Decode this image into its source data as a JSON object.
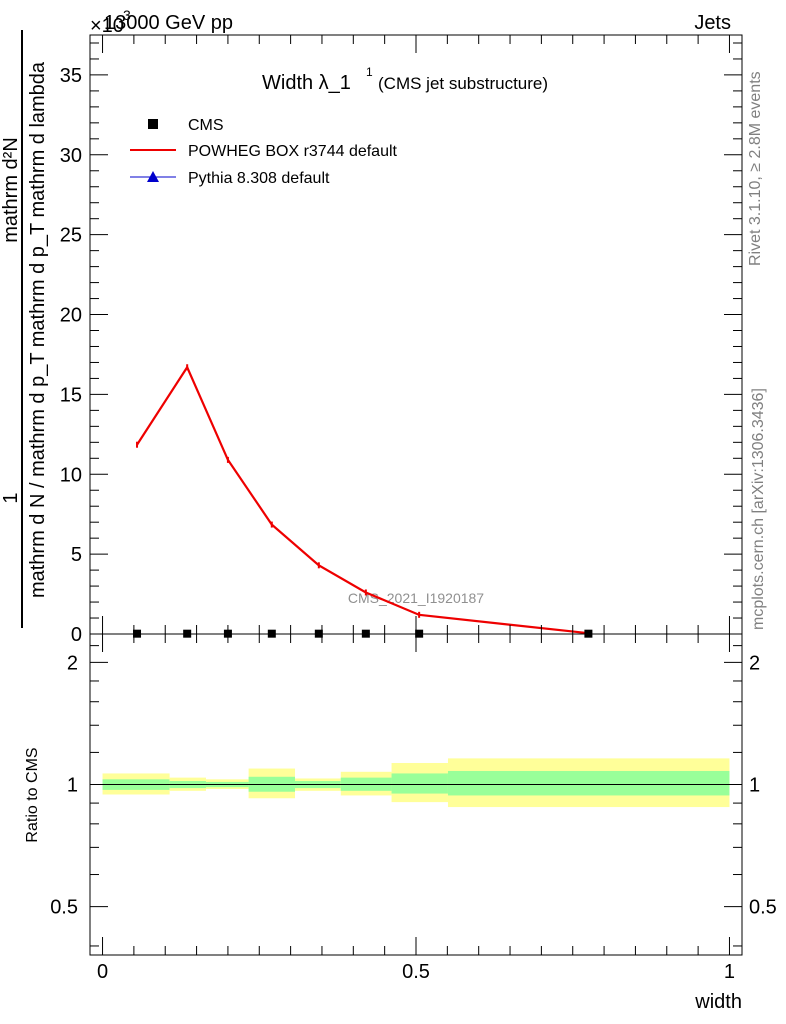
{
  "header": {
    "left": "13000 GeV pp",
    "right": "Jets",
    "multiplier": "×10",
    "exponent": "3"
  },
  "side_labels": {
    "rivet": "Rivet 3.1.10, ≥ 2.8M events",
    "mcplots": "mcplots.cern.ch [arXiv:1306.3436]"
  },
  "watermark": "CMS_2021_I1920187",
  "title": {
    "main": "Width λ_1",
    "sup": "1",
    "sub": "(CMS jet substructure)"
  },
  "legend": [
    {
      "name": "CMS",
      "marker": "square",
      "color": "#000000"
    },
    {
      "name": "POWHEG BOX r3744 default",
      "marker": "line",
      "color": "#ee0000"
    },
    {
      "name": "Pythia 8.308 default",
      "marker": "triangle",
      "color": "#0000cc"
    }
  ],
  "axis_labels": {
    "y_top_numerator": "1",
    "y_top_denominator": "mathrm d N / mathrm d p_T mathrm d p_T mathrm d lambda",
    "y_top_sub_numerator": "mathrm d²N",
    "y_bottom": "Ratio to CMS",
    "x": "width"
  },
  "chart_data": [
    {
      "type": "line",
      "panel": "main",
      "xlim": [
        -0.02,
        1.02
      ],
      "ylim": [
        0,
        37.5
      ],
      "y_multiplier": 1000,
      "x_ticks": [
        0,
        0.5,
        1
      ],
      "y_ticks": [
        0,
        5,
        10,
        15,
        20,
        25,
        30,
        35
      ],
      "series": [
        {
          "name": "CMS",
          "x": [
            0.055,
            0.135,
            0.2,
            0.27,
            0.345,
            0.42,
            0.505,
            0.775
          ],
          "values": [
            0.02,
            0.02,
            0.02,
            0.02,
            0.02,
            0.02,
            0.02,
            0.02
          ]
        },
        {
          "name": "POWHEG BOX r3744 default",
          "x": [
            0.055,
            0.135,
            0.2,
            0.27,
            0.345,
            0.42,
            0.505,
            0.775
          ],
          "values": [
            11.85,
            16.7,
            10.9,
            6.85,
            4.3,
            2.6,
            1.2,
            0.05
          ]
        }
      ]
    },
    {
      "type": "area",
      "panel": "ratio",
      "xlim": [
        -0.02,
        1.02
      ],
      "ylim": [
        0.38,
        2.35
      ],
      "y_scale": "log",
      "y_ticks": [
        0.5,
        1,
        2
      ],
      "reference": 1,
      "bands": [
        {
          "x": [
            0,
            0.107
          ],
          "inner": [
            0.97,
            1.03
          ],
          "outer": [
            0.945,
            1.065
          ]
        },
        {
          "x": [
            0.107,
            0.165
          ],
          "inner": [
            0.98,
            1.02
          ],
          "outer": [
            0.965,
            1.04
          ]
        },
        {
          "x": [
            0.165,
            0.233
          ],
          "inner": [
            0.985,
            1.015
          ],
          "outer": [
            0.975,
            1.03
          ]
        },
        {
          "x": [
            0.233,
            0.307
          ],
          "inner": [
            0.96,
            1.045
          ],
          "outer": [
            0.925,
            1.095
          ]
        },
        {
          "x": [
            0.307,
            0.38
          ],
          "inner": [
            0.98,
            1.02
          ],
          "outer": [
            0.965,
            1.035
          ]
        },
        {
          "x": [
            0.38,
            0.461
          ],
          "inner": [
            0.965,
            1.04
          ],
          "outer": [
            0.94,
            1.075
          ]
        },
        {
          "x": [
            0.461,
            0.551
          ],
          "inner": [
            0.95,
            1.065
          ],
          "outer": [
            0.905,
            1.13
          ]
        },
        {
          "x": [
            0.551,
            1.0
          ],
          "inner": [
            0.94,
            1.08
          ],
          "outer": [
            0.88,
            1.16
          ]
        }
      ]
    }
  ],
  "colors": {
    "cms": "#000000",
    "powheg": "#ee0000",
    "pythia": "#0000cc",
    "band_inner": "#99ff99",
    "band_outer": "#ffff99"
  }
}
